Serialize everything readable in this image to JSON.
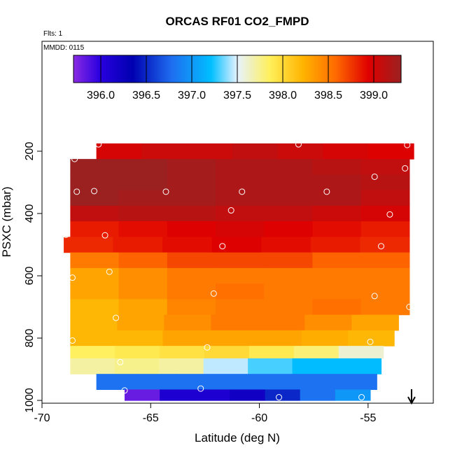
{
  "chart_data": {
    "type": "heatmap",
    "title": "ORCAS RF01 CO2_FMPD",
    "note_flights": "Flts: 1",
    "note_date": "MMDD: 0115",
    "xlabel": "Latitude (deg N)",
    "ylabel": "PSXC (mbar)",
    "xlim": [
      -70,
      -52
    ],
    "ylim": [
      1000,
      60
    ],
    "y_reversed": true,
    "x_ticks": [
      -70,
      -65,
      -60,
      -55
    ],
    "x_tick_labels": [
      "-70",
      "-65",
      "-60",
      "-55"
    ],
    "y_ticks": [
      200,
      400,
      600,
      800,
      1000
    ],
    "y_tick_labels": [
      "200",
      "400",
      "600",
      "800",
      "1000"
    ],
    "colorbar": {
      "range": [
        395.7,
        399.3
      ],
      "ticks": [
        396.0,
        396.5,
        397.0,
        397.5,
        398.0,
        398.5,
        399.0
      ],
      "tick_labels": [
        "396.0",
        "396.5",
        "397.0",
        "397.5",
        "398.0",
        "398.5",
        "399.0"
      ]
    },
    "rows": [
      {
        "p_top": 175,
        "p_bot": 225,
        "lat_min": -67.5,
        "lat_max": -52.9,
        "values": [
          399.0,
          399.05,
          399.05,
          399.1,
          399.05,
          399.0,
          398.95
        ]
      },
      {
        "p_top": 225,
        "p_bot": 275,
        "lat_min": -68.7,
        "lat_max": -53.1,
        "values": [
          399.3,
          399.3,
          399.25,
          399.2,
          399.2,
          399.15,
          399.1
        ]
      },
      {
        "p_top": 275,
        "p_bot": 325,
        "lat_min": -68.7,
        "lat_max": -53.1,
        "values": [
          399.3,
          399.3,
          399.25,
          399.2,
          399.2,
          399.2,
          399.15
        ]
      },
      {
        "p_top": 325,
        "p_bot": 375,
        "lat_min": -68.7,
        "lat_max": -53.1,
        "values": [
          399.3,
          399.25,
          399.25,
          399.2,
          399.2,
          399.2,
          399.1
        ]
      },
      {
        "p_top": 375,
        "p_bot": 425,
        "lat_min": -68.7,
        "lat_max": -53.1,
        "values": [
          399.1,
          399.15,
          399.15,
          399.1,
          399.1,
          399.05,
          399.0
        ]
      },
      {
        "p_top": 425,
        "p_bot": 475,
        "lat_min": -68.7,
        "lat_max": -53.1,
        "values": [
          398.85,
          398.9,
          398.95,
          399.0,
          398.95,
          398.9,
          398.85
        ]
      },
      {
        "p_top": 475,
        "p_bot": 525,
        "lat_min": -69.0,
        "lat_max": -53.1,
        "values": [
          398.8,
          398.85,
          398.9,
          398.95,
          398.9,
          398.85,
          398.8
        ]
      },
      {
        "p_top": 525,
        "p_bot": 575,
        "lat_min": -68.7,
        "lat_max": -53.1,
        "values": [
          398.5,
          398.6,
          398.7,
          398.7,
          398.7,
          398.6,
          398.6
        ]
      },
      {
        "p_top": 575,
        "p_bot": 625,
        "lat_min": -68.7,
        "lat_max": -53.1,
        "values": [
          398.3,
          398.4,
          398.5,
          398.5,
          398.5,
          398.5,
          398.5
        ]
      },
      {
        "p_top": 625,
        "p_bot": 675,
        "lat_min": -68.7,
        "lat_max": -53.1,
        "values": [
          398.3,
          398.4,
          398.5,
          398.55,
          398.5,
          398.5,
          398.5
        ]
      },
      {
        "p_top": 675,
        "p_bot": 725,
        "lat_min": -68.7,
        "lat_max": -53.1,
        "values": [
          398.2,
          398.3,
          398.45,
          398.5,
          398.5,
          398.55,
          398.5
        ]
      },
      {
        "p_top": 725,
        "p_bot": 775,
        "lat_min": -68.7,
        "lat_max": -53.6,
        "values": [
          398.2,
          398.3,
          398.4,
          398.5,
          398.5,
          398.4,
          398.3
        ]
      },
      {
        "p_top": 775,
        "p_bot": 825,
        "lat_min": -68.7,
        "lat_max": -53.8,
        "values": [
          398.2,
          398.2,
          398.3,
          398.3,
          398.3,
          398.25,
          398.2
        ]
      },
      {
        "p_top": 825,
        "p_bot": 865,
        "lat_min": -68.7,
        "lat_max": -54.3,
        "values": [
          397.85,
          397.9,
          397.95,
          398.0,
          397.9,
          397.8,
          397.6
        ]
      },
      {
        "p_top": 865,
        "p_bot": 915,
        "lat_min": -68.7,
        "lat_max": -54.4,
        "values": [
          397.7,
          397.75,
          397.7,
          397.45,
          397.3,
          397.2,
          397.2
        ]
      },
      {
        "p_top": 915,
        "p_bot": 965,
        "lat_min": -67.5,
        "lat_max": -54.6,
        "values": [
          396.8,
          396.8,
          396.8,
          396.8,
          396.8,
          396.8,
          396.8
        ]
      },
      {
        "p_top": 965,
        "p_bot": 1000,
        "lat_min": -66.2,
        "lat_max": -54.9,
        "values": [
          395.8,
          396.1,
          396.1,
          396.2,
          396.5,
          396.8,
          397.0
        ]
      }
    ],
    "points": [
      {
        "lat": -67.4,
        "p": 178
      },
      {
        "lat": -58.2,
        "p": 178
      },
      {
        "lat": -53.2,
        "p": 180
      },
      {
        "lat": -68.5,
        "p": 225
      },
      {
        "lat": -53.3,
        "p": 255
      },
      {
        "lat": -54.7,
        "p": 282
      },
      {
        "lat": -68.4,
        "p": 330
      },
      {
        "lat": -67.6,
        "p": 328
      },
      {
        "lat": -64.3,
        "p": 330
      },
      {
        "lat": -60.8,
        "p": 330
      },
      {
        "lat": -56.9,
        "p": 330
      },
      {
        "lat": -61.3,
        "p": 390
      },
      {
        "lat": -54.0,
        "p": 403
      },
      {
        "lat": -68.9,
        "p": 468
      },
      {
        "lat": -67.1,
        "p": 470
      },
      {
        "lat": -61.7,
        "p": 505
      },
      {
        "lat": -54.4,
        "p": 505
      },
      {
        "lat": -66.9,
        "p": 587
      },
      {
        "lat": -68.6,
        "p": 606
      },
      {
        "lat": -62.1,
        "p": 657
      },
      {
        "lat": -54.7,
        "p": 665
      },
      {
        "lat": -53.1,
        "p": 700
      },
      {
        "lat": -66.6,
        "p": 735
      },
      {
        "lat": -68.6,
        "p": 808
      },
      {
        "lat": -62.4,
        "p": 830
      },
      {
        "lat": -54.9,
        "p": 812
      },
      {
        "lat": -66.4,
        "p": 877
      },
      {
        "lat": -66.2,
        "p": 968
      },
      {
        "lat": -62.7,
        "p": 962
      },
      {
        "lat": -59.1,
        "p": 990
      },
      {
        "lat": -55.3,
        "p": 990
      }
    ],
    "arrow_marker": {
      "lat": -53.0,
      "direction": "down"
    }
  }
}
